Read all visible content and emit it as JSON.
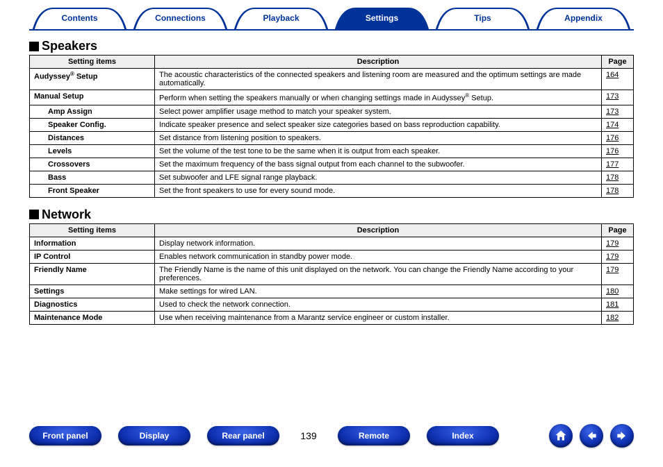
{
  "colors": {
    "brand": "#003399",
    "tab_border": "#003399",
    "header_bg": "#eeeeee",
    "text": "#000000"
  },
  "tabs": [
    {
      "label": "Contents",
      "active": false
    },
    {
      "label": "Connections",
      "active": false
    },
    {
      "label": "Playback",
      "active": false
    },
    {
      "label": "Settings",
      "active": true
    },
    {
      "label": "Tips",
      "active": false
    },
    {
      "label": "Appendix",
      "active": false
    }
  ],
  "sections": [
    {
      "title": "Speakers",
      "columns": [
        "Setting items",
        "Description",
        "Page"
      ],
      "rows": [
        {
          "item": "Audyssey® Setup",
          "sub": false,
          "desc": "The acoustic characteristics of the connected speakers and listening room are measured and the optimum settings are made automatically.",
          "page": "164"
        },
        {
          "item": "Manual Setup",
          "sub": false,
          "desc": "Perform when setting the speakers manually or when changing settings made in Audyssey® Setup.",
          "page": "173"
        },
        {
          "item": "Amp Assign",
          "sub": true,
          "desc": "Select power amplifier usage method to match your speaker system.",
          "page": "173"
        },
        {
          "item": "Speaker Config.",
          "sub": true,
          "desc": "Indicate speaker presence and select speaker size categories based on bass reproduction capability.",
          "page": "174"
        },
        {
          "item": "Distances",
          "sub": true,
          "desc": "Set distance from listening position to speakers.",
          "page": "176"
        },
        {
          "item": "Levels",
          "sub": true,
          "desc": "Set the volume of the test tone to be the same when it is output from each speaker.",
          "page": "176"
        },
        {
          "item": "Crossovers",
          "sub": true,
          "desc": "Set the maximum frequency of the bass signal output from each channel to the subwoofer.",
          "page": "177"
        },
        {
          "item": "Bass",
          "sub": true,
          "desc": "Set subwoofer and LFE signal range playback.",
          "page": "178"
        },
        {
          "item": "Front Speaker",
          "sub": true,
          "desc": "Set the front speakers to use for every sound mode.",
          "page": "178"
        }
      ]
    },
    {
      "title": "Network",
      "columns": [
        "Setting items",
        "Description",
        "Page"
      ],
      "rows": [
        {
          "item": "Information",
          "sub": false,
          "desc": "Display network information.",
          "page": "179"
        },
        {
          "item": "IP Control",
          "sub": false,
          "desc": "Enables network communication in standby power mode.",
          "page": "179"
        },
        {
          "item": "Friendly Name",
          "sub": false,
          "desc": "The Friendly Name is the name of this unit displayed on the network. You can change the Friendly Name according to your preferences.",
          "page": "179"
        },
        {
          "item": "Settings",
          "sub": false,
          "desc": "Make settings for wired LAN.",
          "page": "180"
        },
        {
          "item": "Diagnostics",
          "sub": false,
          "desc": "Used to check the network connection.",
          "page": "181"
        },
        {
          "item": "Maintenance Mode",
          "sub": false,
          "desc": "Use when receiving maintenance from a Marantz service engineer or custom installer.",
          "page": "182"
        }
      ]
    }
  ],
  "bottom": {
    "buttons_left": [
      "Front panel",
      "Display",
      "Rear panel"
    ],
    "page_number": "139",
    "buttons_right": [
      "Remote",
      "Index"
    ],
    "nav_icons": [
      "home-icon",
      "arrow-left-icon",
      "arrow-right-icon"
    ]
  }
}
